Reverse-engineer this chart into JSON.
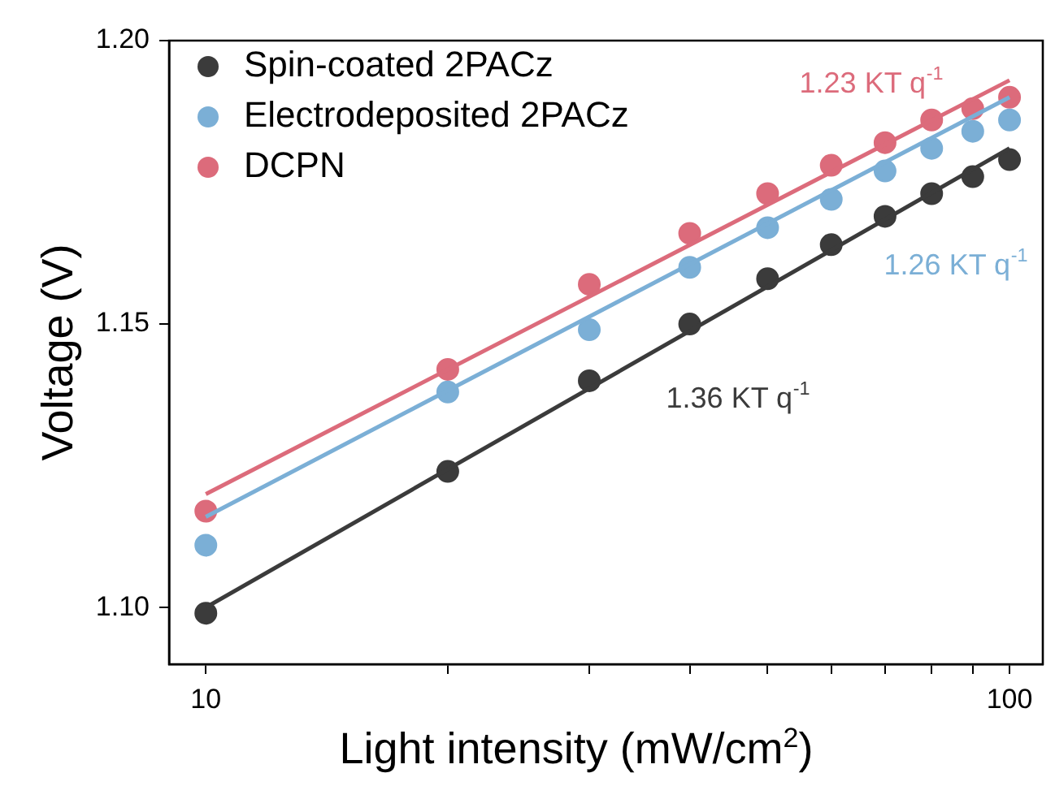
{
  "chart_data": {
    "type": "scatter",
    "xlabel": "Light intensity (mW/cm$^{2}$)",
    "ylabel": "Voltage (V)",
    "log": "x",
    "xlim": [
      9,
      110
    ],
    "ylim": [
      1.09,
      1.2
    ],
    "xticks": [
      10,
      {
        "value": 20,
        "label": null
      },
      {
        "value": 30,
        "label": null
      },
      {
        "value": 40,
        "label": null
      },
      {
        "value": 50,
        "label": null
      },
      {
        "value": 60,
        "label": null
      },
      {
        "value": 70,
        "label": null
      },
      {
        "value": 80,
        "label": null
      },
      {
        "value": 90,
        "label": null
      },
      100
    ],
    "yticks": [
      {
        "value": 1.1,
        "label": "1.10"
      },
      1.15,
      {
        "value": 1.2,
        "label": "1.20"
      }
    ],
    "grid": false,
    "legend": "top left",
    "marker": "circle",
    "series": [
      {
        "name": "Spin-coated 2PACz",
        "color": "#3b3b3b",
        "x": [
          10,
          20,
          30,
          40,
          50,
          60,
          70,
          80,
          90,
          100
        ],
        "values": [
          1.099,
          1.124,
          1.14,
          1.15,
          1.158,
          1.164,
          1.169,
          1.173,
          1.176,
          1.179
        ]
      },
      {
        "name": "Electrodeposited 2PACz",
        "color": "#7bafd6",
        "x": [
          10,
          20,
          30,
          40,
          50,
          60,
          70,
          80,
          90,
          100
        ],
        "values": [
          1.111,
          1.138,
          1.149,
          1.16,
          1.167,
          1.172,
          1.177,
          1.181,
          1.184,
          1.186
        ]
      },
      {
        "name": "DCPN",
        "color": "#dc6b7b",
        "x": [
          10,
          20,
          30,
          40,
          50,
          60,
          70,
          80,
          90,
          100
        ],
        "values": [
          1.117,
          1.142,
          1.157,
          1.166,
          1.173,
          1.178,
          1.182,
          1.186,
          1.188,
          1.19
        ]
      },
      {
        "type": "line",
        "marker": "none",
        "color": "#3b3b3b",
        "x": [
          10,
          100
        ],
        "values": [
          1.1,
          1.181
        ]
      },
      {
        "type": "line",
        "marker": "none",
        "color": "#7bafd6",
        "x": [
          10,
          100
        ],
        "values": [
          1.116,
          1.19
        ]
      },
      {
        "type": "line",
        "marker": "none",
        "color": "#dc6b7b",
        "x": [
          10,
          100
        ],
        "values": [
          1.12,
          1.193
        ]
      }
    ],
    "annotations": [
      "1.36 KT q$^{-1}$",
      "1.26 KT q$^{-1}$",
      "1.23 KT q$^{-1}$"
    ]
  }
}
